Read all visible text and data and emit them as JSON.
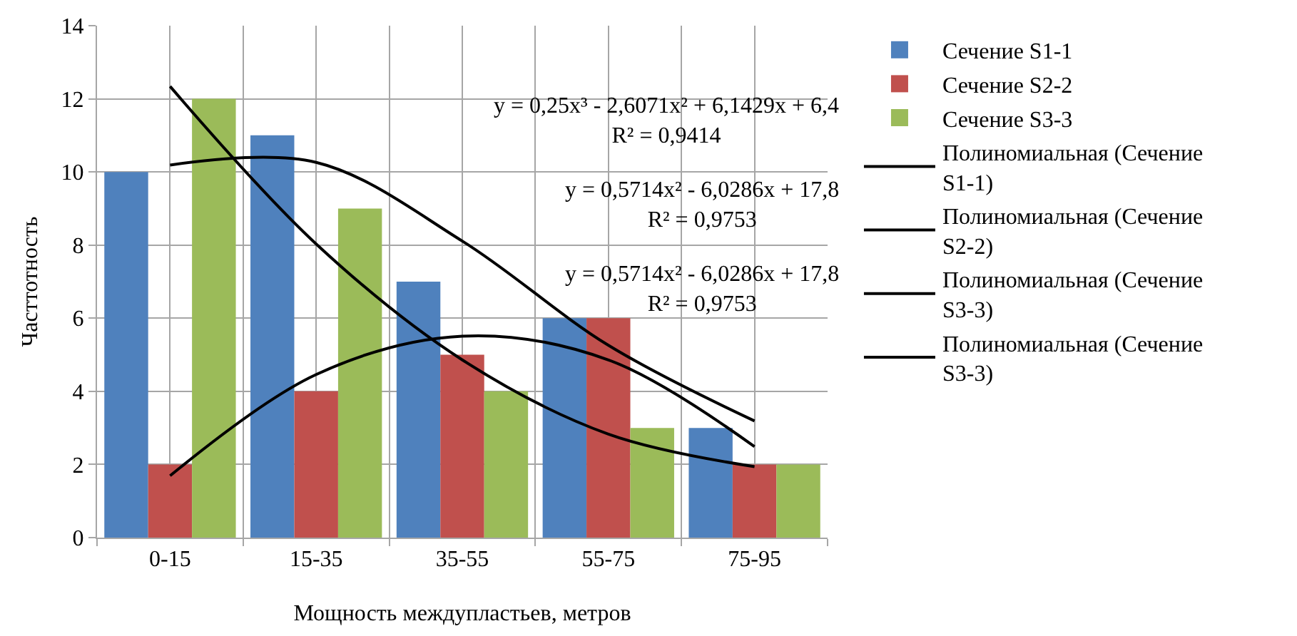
{
  "chart_data": {
    "type": "bar",
    "xlabel": "Мощность междупластьев, метров",
    "ylabel": "Часттотность",
    "categories": [
      "0-15",
      "15-35",
      "35-55",
      "55-75",
      "75-95"
    ],
    "series": [
      {
        "name": "Сечение S1-1",
        "color": "#4f81bd",
        "values": [
          10,
          11,
          7,
          6,
          3
        ]
      },
      {
        "name": "Сечение S2-2",
        "color": "#c0504d",
        "values": [
          2,
          4,
          5,
          6,
          2
        ]
      },
      {
        "name": "Сечение S3-3",
        "color": "#9bbb59",
        "values": [
          12,
          9,
          4,
          3,
          2
        ]
      },
      {
        "name": "Полиномиальная (Сечение S1-1)",
        "type": "line",
        "color": "#000000",
        "values": [
          10.19,
          10.26,
          8.11,
          5.26,
          3.19
        ]
      },
      {
        "name": "Полиномиальная (Сечение S2-2)",
        "type": "line",
        "color": "#000000",
        "values": [
          1.69,
          4.46,
          5.51,
          4.86,
          2.49
        ]
      },
      {
        "name": "Полиномиальная (Сечение S3-3)",
        "type": "line",
        "color": "#000000",
        "values": [
          12.34,
          8.03,
          4.86,
          2.83,
          1.94
        ]
      },
      {
        "name": "Полиномиальная (Сечение S3-3)",
        "type": "line",
        "color": "#000000",
        "values": [
          null,
          null,
          null,
          null,
          null
        ]
      }
    ],
    "annotations": [
      "y = 0,25x³ - 2,6071x² + 6,1429x + 6,4\nR² = 0,9414",
      "y = 0,5714x² - 6,0286x + 17,8\nR² = 0,9753",
      "y = 0,5714x² - 6,0286x + 17,8\nR² = 0,9753"
    ],
    "ylim": [
      0,
      14
    ],
    "yticks": [
      0,
      2,
      4,
      6,
      8,
      10,
      12,
      14
    ],
    "grid": true,
    "legend": "right",
    "marker": "none",
    "line_style": "solid"
  }
}
